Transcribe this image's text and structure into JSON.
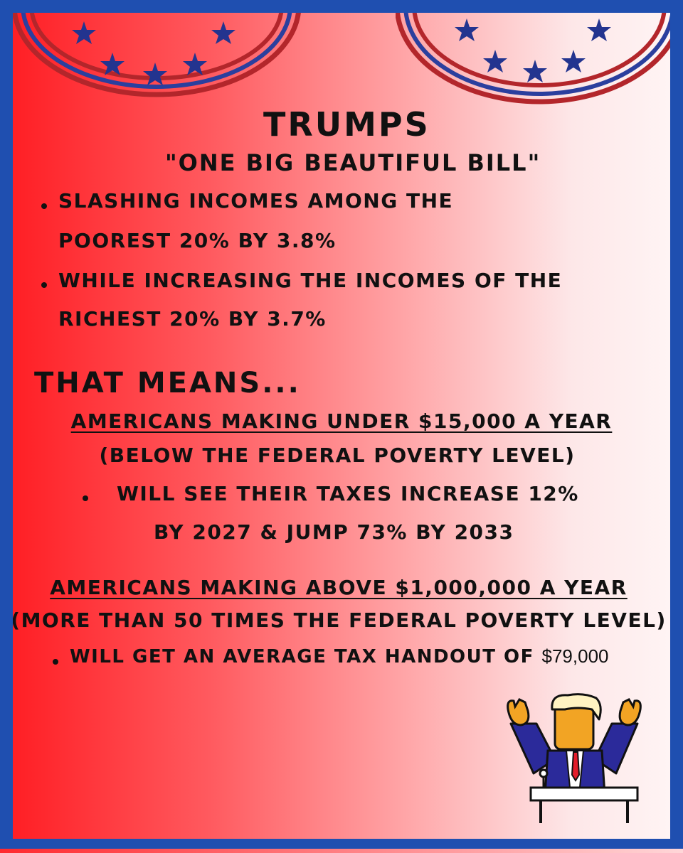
{
  "title": "TRUMPS",
  "subtitle": "\"ONE BIG BEAUTIFUL BILL\"",
  "points": [
    {
      "line1": "SLASHING INCOMES AMONG THE",
      "line2": "POOREST 20% BY 3.8%"
    },
    {
      "line1": "WHILE INCREASING THE INCOMES OF THE",
      "line2": "RICHEST 20% BY 3.7%"
    }
  ],
  "that_means": "THAT MEANS...",
  "group_low": {
    "heading": "AMERICANS MAKING UNDER $15,000 A YEAR",
    "note": "(BELOW THE FEDERAL POVERTY LEVEL)",
    "bullet_line1": "WILL SEE THEIR TAXES INCREASE 12%",
    "bullet_line2": "BY 2027 & JUMP 73% BY 2033"
  },
  "group_high": {
    "heading": "AMERICANS MAKING ABOVE $1,000,000 A YEAR",
    "note": "(MORE THAN 50 TIMES THE FEDERAL POVERTY LEVEL)",
    "bullet_text": "WILL GET AN AVERAGE TAX HANDOUT OF",
    "bullet_amount": "$79,000"
  },
  "colors": {
    "frame": "#1f4fb0",
    "bunting_red": "#b3262b",
    "bunting_blue": "#2b3f9e",
    "star": "#23348f",
    "text": "#111111"
  },
  "icons": [
    "star-icon",
    "speaker-at-podium-illustration"
  ]
}
